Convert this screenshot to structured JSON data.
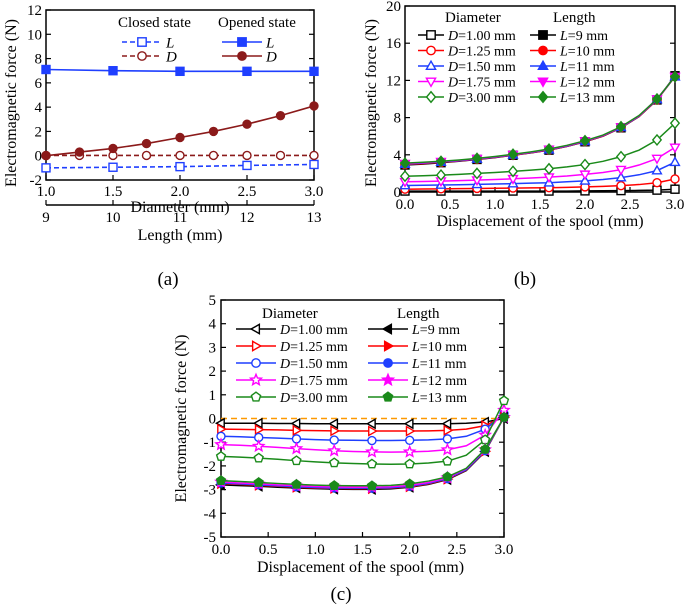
{
  "chart_data": [
    {
      "id": "a",
      "type": "line",
      "panel_label": "(a)",
      "ylabel": "Electromagnetic force (N)",
      "xlabel_top": "Diameter (mm)",
      "xlabel_bottom": "Length (mm)",
      "ylim": [
        -2,
        12
      ],
      "xlim_top": [
        1.0,
        3.0
      ],
      "xlim_bottom": [
        9,
        13
      ],
      "yticks": [
        -2,
        0,
        2,
        4,
        6,
        8,
        10,
        12
      ],
      "xticks_top": [
        1.0,
        1.5,
        2.0,
        2.5,
        3.0
      ],
      "xticks_bottom": [
        9,
        10,
        11,
        12,
        13
      ],
      "xtick_labels_top": [
        "1.0",
        "1.5",
        "2.0",
        "2.5",
        "3.0"
      ],
      "xtick_labels_bottom": [
        "9",
        "10",
        "11",
        "12",
        "13"
      ],
      "legend_headers": [
        "Closed state",
        "Opened state"
      ],
      "series": [
        {
          "name": "L",
          "state": "closed",
          "color": "#1f3fff",
          "marker": "square",
          "filled": false,
          "dashed": true,
          "x": [
            9,
            10,
            11,
            12,
            13
          ],
          "y": [
            -1.0,
            -0.95,
            -0.9,
            -0.8,
            -0.72
          ]
        },
        {
          "name": "D",
          "state": "closed",
          "color": "#8b1a1a",
          "marker": "circle",
          "filled": false,
          "dashed": true,
          "x": [
            1.0,
            1.25,
            1.5,
            1.75,
            2.0,
            2.25,
            2.5,
            2.75,
            3.0
          ],
          "y": [
            0.02,
            0.02,
            0.02,
            0.02,
            0.02,
            0.02,
            0.02,
            0.02,
            0.02
          ]
        },
        {
          "name": "L",
          "state": "opened",
          "color": "#1f3fff",
          "marker": "square",
          "filled": true,
          "dashed": false,
          "x": [
            9,
            10,
            11,
            12,
            13
          ],
          "y": [
            7.1,
            7.0,
            6.95,
            6.95,
            6.95
          ]
        },
        {
          "name": "D",
          "state": "opened",
          "color": "#8b1a1a",
          "marker": "circle",
          "filled": true,
          "dashed": false,
          "x": [
            1.0,
            1.25,
            1.5,
            1.75,
            2.0,
            2.25,
            2.5,
            2.75,
            3.0
          ],
          "y": [
            0.0,
            0.3,
            0.6,
            1.0,
            1.5,
            2.0,
            2.6,
            3.3,
            4.1
          ]
        }
      ]
    },
    {
      "id": "b",
      "type": "line",
      "panel_label": "(b)",
      "ylabel": "Electromagnetic force (N)",
      "xlabel": "Displacement of the spool (mm)",
      "xlim": [
        0.0,
        3.0
      ],
      "ylim": [
        0,
        20
      ],
      "xticks": [
        0.0,
        0.5,
        1.0,
        1.5,
        2.0,
        2.5,
        3.0
      ],
      "xtick_labels": [
        "0.0",
        "0.5",
        "1.0",
        "1.5",
        "2.0",
        "2.5",
        "3.0"
      ],
      "yticks": [
        0,
        4,
        8,
        12,
        16,
        20
      ],
      "legend_headers": [
        "Diameter",
        "Length"
      ],
      "series": [
        {
          "name": "D=1.00 mm",
          "color": "#000000",
          "marker": "square",
          "filled": false,
          "x": [
            0,
            0.2,
            0.4,
            0.6,
            0.8,
            1.0,
            1.2,
            1.4,
            1.6,
            1.8,
            2.0,
            2.2,
            2.4,
            2.6,
            2.8,
            3.0
          ],
          "y": [
            0.1,
            0.1,
            0.1,
            0.1,
            0.1,
            0.1,
            0.1,
            0.1,
            0.1,
            0.1,
            0.12,
            0.13,
            0.15,
            0.17,
            0.2,
            0.3
          ]
        },
        {
          "name": "D=1.25 mm",
          "color": "#ff0000",
          "marker": "circle",
          "filled": false,
          "x": [
            0,
            0.2,
            0.4,
            0.6,
            0.8,
            1.0,
            1.2,
            1.4,
            1.6,
            1.8,
            2.0,
            2.2,
            2.4,
            2.6,
            2.8,
            3.0
          ],
          "y": [
            0.3,
            0.32,
            0.34,
            0.36,
            0.38,
            0.4,
            0.42,
            0.44,
            0.46,
            0.5,
            0.55,
            0.6,
            0.68,
            0.8,
            1.0,
            1.4
          ]
        },
        {
          "name": "D=1.50 mm",
          "color": "#1f3fff",
          "marker": "triangle-up",
          "filled": false,
          "x": [
            0,
            0.2,
            0.4,
            0.6,
            0.8,
            1.0,
            1.2,
            1.4,
            1.6,
            1.8,
            2.0,
            2.2,
            2.4,
            2.6,
            2.8,
            3.0
          ],
          "y": [
            0.7,
            0.72,
            0.75,
            0.78,
            0.82,
            0.86,
            0.9,
            0.95,
            1.0,
            1.1,
            1.2,
            1.35,
            1.55,
            1.85,
            2.3,
            3.2
          ]
        },
        {
          "name": "D=1.75 mm",
          "color": "#ff00ff",
          "marker": "triangle-down",
          "filled": false,
          "x": [
            0,
            0.2,
            0.4,
            0.6,
            0.8,
            1.0,
            1.2,
            1.4,
            1.6,
            1.8,
            2.0,
            2.2,
            2.4,
            2.6,
            2.8,
            3.0
          ],
          "y": [
            1.1,
            1.13,
            1.17,
            1.22,
            1.28,
            1.35,
            1.42,
            1.5,
            1.6,
            1.72,
            1.9,
            2.1,
            2.4,
            2.9,
            3.6,
            4.8
          ]
        },
        {
          "name": "D=3.00 mm",
          "color": "#1a8a1a",
          "marker": "diamond",
          "filled": false,
          "x": [
            0,
            0.2,
            0.4,
            0.6,
            0.8,
            1.0,
            1.2,
            1.4,
            1.6,
            1.8,
            2.0,
            2.2,
            2.4,
            2.6,
            2.8,
            3.0
          ],
          "y": [
            1.7,
            1.75,
            1.82,
            1.9,
            2.0,
            2.1,
            2.22,
            2.35,
            2.5,
            2.7,
            2.95,
            3.3,
            3.8,
            4.5,
            5.6,
            7.4
          ]
        },
        {
          "name": "L=9 mm",
          "color": "#000000",
          "marker": "square",
          "filled": true,
          "x": [
            0,
            0.2,
            0.4,
            0.6,
            0.8,
            1.0,
            1.2,
            1.4,
            1.6,
            1.8,
            2.0,
            2.2,
            2.4,
            2.6,
            2.8,
            3.0
          ],
          "y": [
            2.9,
            3.0,
            3.15,
            3.3,
            3.5,
            3.7,
            3.95,
            4.2,
            4.5,
            4.9,
            5.4,
            6.0,
            6.9,
            8.1,
            9.9,
            12.5
          ]
        },
        {
          "name": "L=10 mm",
          "color": "#ff0000",
          "marker": "circle",
          "filled": true,
          "x": [
            0,
            0.2,
            0.4,
            0.6,
            0.8,
            1.0,
            1.2,
            1.4,
            1.6,
            1.8,
            2.0,
            2.2,
            2.4,
            2.6,
            2.8,
            3.0
          ],
          "y": [
            2.95,
            3.05,
            3.18,
            3.33,
            3.52,
            3.72,
            3.97,
            4.22,
            4.52,
            4.92,
            5.42,
            6.02,
            6.92,
            8.12,
            9.9,
            12.4
          ]
        },
        {
          "name": "L=11 mm",
          "color": "#1f3fff",
          "marker": "triangle-up",
          "filled": true,
          "x": [
            0,
            0.2,
            0.4,
            0.6,
            0.8,
            1.0,
            1.2,
            1.4,
            1.6,
            1.8,
            2.0,
            2.2,
            2.4,
            2.6,
            2.8,
            3.0
          ],
          "y": [
            3.0,
            3.1,
            3.22,
            3.36,
            3.55,
            3.75,
            4.0,
            4.25,
            4.55,
            4.95,
            5.45,
            6.05,
            6.95,
            8.15,
            9.95,
            12.4
          ]
        },
        {
          "name": "L=12 mm",
          "color": "#ff00ff",
          "marker": "triangle-down",
          "filled": true,
          "x": [
            0,
            0.2,
            0.4,
            0.6,
            0.8,
            1.0,
            1.2,
            1.4,
            1.6,
            1.8,
            2.0,
            2.2,
            2.4,
            2.6,
            2.8,
            3.0
          ],
          "y": [
            3.05,
            3.15,
            3.26,
            3.4,
            3.58,
            3.78,
            4.02,
            4.28,
            4.58,
            4.98,
            5.48,
            6.08,
            6.98,
            8.18,
            10.0,
            12.4
          ]
        },
        {
          "name": "L=13 mm",
          "color": "#1a8a1a",
          "marker": "diamond",
          "filled": true,
          "x": [
            0,
            0.2,
            0.4,
            0.6,
            0.8,
            1.0,
            1.2,
            1.4,
            1.6,
            1.8,
            2.0,
            2.2,
            2.4,
            2.6,
            2.8,
            3.0
          ],
          "y": [
            3.1,
            3.2,
            3.3,
            3.44,
            3.62,
            3.82,
            4.06,
            4.32,
            4.62,
            5.02,
            5.52,
            6.12,
            7.02,
            8.22,
            10.0,
            12.4
          ]
        }
      ]
    },
    {
      "id": "c",
      "type": "line",
      "panel_label": "(c)",
      "ylabel": "Electromagnetic force (N)",
      "xlabel": "Displacement of the spool (mm)",
      "xlim": [
        0.0,
        3.0
      ],
      "ylim": [
        -5,
        5
      ],
      "xticks": [
        0.0,
        0.5,
        1.0,
        1.5,
        2.0,
        2.5,
        3.0
      ],
      "xtick_labels": [
        "0.0",
        "0.5",
        "1.0",
        "1.5",
        "2.0",
        "2.5",
        "3.0"
      ],
      "yticks": [
        -5,
        -4,
        -3,
        -2,
        -1,
        0,
        1,
        2,
        3,
        4,
        5
      ],
      "legend_headers": [
        "Diameter",
        "Length"
      ],
      "reference_line": {
        "y": 0,
        "color": "#ff9900",
        "dashed": true
      },
      "series": [
        {
          "name": "D=1.00 mm",
          "color": "#000000",
          "marker": "triangle-left",
          "filled": false,
          "x": [
            0,
            0.2,
            0.4,
            0.6,
            0.8,
            1.0,
            1.2,
            1.4,
            1.6,
            1.8,
            2.0,
            2.2,
            2.4,
            2.6,
            2.8,
            3.0
          ],
          "y": [
            -0.2,
            -0.2,
            -0.2,
            -0.21,
            -0.21,
            -0.22,
            -0.22,
            -0.22,
            -0.22,
            -0.22,
            -0.22,
            -0.22,
            -0.22,
            -0.2,
            -0.15,
            0.0
          ]
        },
        {
          "name": "D=1.25 mm",
          "color": "#ff0000",
          "marker": "triangle-right",
          "filled": false,
          "x": [
            0,
            0.2,
            0.4,
            0.6,
            0.8,
            1.0,
            1.2,
            1.4,
            1.6,
            1.8,
            2.0,
            2.2,
            2.4,
            2.6,
            2.8,
            3.0
          ],
          "y": [
            -0.45,
            -0.46,
            -0.47,
            -0.48,
            -0.5,
            -0.51,
            -0.52,
            -0.53,
            -0.53,
            -0.53,
            -0.53,
            -0.52,
            -0.5,
            -0.45,
            -0.3,
            0.1
          ]
        },
        {
          "name": "D=1.50 mm",
          "color": "#1f3fff",
          "marker": "circle",
          "filled": false,
          "x": [
            0,
            0.2,
            0.4,
            0.6,
            0.8,
            1.0,
            1.2,
            1.4,
            1.6,
            1.8,
            2.0,
            2.2,
            2.4,
            2.6,
            2.8,
            3.0
          ],
          "y": [
            -0.75,
            -0.77,
            -0.8,
            -0.83,
            -0.86,
            -0.89,
            -0.91,
            -0.92,
            -0.93,
            -0.93,
            -0.92,
            -0.9,
            -0.86,
            -0.75,
            -0.45,
            0.2
          ]
        },
        {
          "name": "D=1.75 mm",
          "color": "#ff00ff",
          "marker": "star",
          "filled": false,
          "x": [
            0,
            0.2,
            0.4,
            0.6,
            0.8,
            1.0,
            1.2,
            1.4,
            1.6,
            1.8,
            2.0,
            2.2,
            2.4,
            2.6,
            2.8,
            3.0
          ],
          "y": [
            -1.1,
            -1.13,
            -1.17,
            -1.22,
            -1.27,
            -1.32,
            -1.36,
            -1.39,
            -1.41,
            -1.42,
            -1.41,
            -1.38,
            -1.32,
            -1.15,
            -0.7,
            0.35
          ]
        },
        {
          "name": "D=3.00 mm",
          "color": "#1a8a1a",
          "marker": "pentagon",
          "filled": false,
          "x": [
            0,
            0.2,
            0.4,
            0.6,
            0.8,
            1.0,
            1.2,
            1.4,
            1.6,
            1.8,
            2.0,
            2.2,
            2.4,
            2.6,
            2.8,
            3.0
          ],
          "y": [
            -1.6,
            -1.63,
            -1.67,
            -1.72,
            -1.78,
            -1.83,
            -1.87,
            -1.9,
            -1.92,
            -1.93,
            -1.92,
            -1.88,
            -1.8,
            -1.55,
            -0.9,
            0.75
          ]
        },
        {
          "name": "L=9 mm",
          "color": "#000000",
          "marker": "triangle-left",
          "filled": true,
          "x": [
            0,
            0.2,
            0.4,
            0.6,
            0.8,
            1.0,
            1.2,
            1.4,
            1.6,
            1.8,
            2.0,
            2.2,
            2.4,
            2.6,
            2.8,
            3.0
          ],
          "y": [
            -2.8,
            -2.83,
            -2.86,
            -2.9,
            -2.93,
            -2.96,
            -2.98,
            -2.99,
            -2.99,
            -2.97,
            -2.9,
            -2.78,
            -2.58,
            -2.2,
            -1.4,
            0.05
          ]
        },
        {
          "name": "L=10 mm",
          "color": "#ff0000",
          "marker": "triangle-right",
          "filled": true,
          "x": [
            0,
            0.2,
            0.4,
            0.6,
            0.8,
            1.0,
            1.2,
            1.4,
            1.6,
            1.8,
            2.0,
            2.2,
            2.4,
            2.6,
            2.8,
            3.0
          ],
          "y": [
            -2.75,
            -2.78,
            -2.82,
            -2.86,
            -2.9,
            -2.93,
            -2.95,
            -2.96,
            -2.96,
            -2.94,
            -2.88,
            -2.76,
            -2.56,
            -2.18,
            -1.38,
            0.05
          ]
        },
        {
          "name": "L=11 mm",
          "color": "#1f3fff",
          "marker": "circle",
          "filled": true,
          "x": [
            0,
            0.2,
            0.4,
            0.6,
            0.8,
            1.0,
            1.2,
            1.4,
            1.6,
            1.8,
            2.0,
            2.2,
            2.4,
            2.6,
            2.8,
            3.0
          ],
          "y": [
            -2.72,
            -2.76,
            -2.8,
            -2.84,
            -2.88,
            -2.91,
            -2.93,
            -2.94,
            -2.94,
            -2.92,
            -2.86,
            -2.74,
            -2.54,
            -2.16,
            -1.36,
            0.05
          ]
        },
        {
          "name": "L=12 mm",
          "color": "#ff00ff",
          "marker": "star",
          "filled": true,
          "x": [
            0,
            0.2,
            0.4,
            0.6,
            0.8,
            1.0,
            1.2,
            1.4,
            1.6,
            1.8,
            2.0,
            2.2,
            2.4,
            2.6,
            2.8,
            3.0
          ],
          "y": [
            -2.68,
            -2.72,
            -2.76,
            -2.8,
            -2.84,
            -2.87,
            -2.89,
            -2.9,
            -2.9,
            -2.88,
            -2.82,
            -2.7,
            -2.5,
            -2.12,
            -1.32,
            0.05
          ]
        },
        {
          "name": "L=13 mm",
          "color": "#1a8a1a",
          "marker": "pentagon",
          "filled": true,
          "x": [
            0,
            0.2,
            0.4,
            0.6,
            0.8,
            1.0,
            1.2,
            1.4,
            1.6,
            1.8,
            2.0,
            2.2,
            2.4,
            2.6,
            2.8,
            3.0
          ],
          "y": [
            -2.62,
            -2.66,
            -2.7,
            -2.74,
            -2.78,
            -2.81,
            -2.83,
            -2.84,
            -2.84,
            -2.82,
            -2.76,
            -2.64,
            -2.46,
            -2.1,
            -1.3,
            0.05
          ]
        }
      ]
    }
  ]
}
